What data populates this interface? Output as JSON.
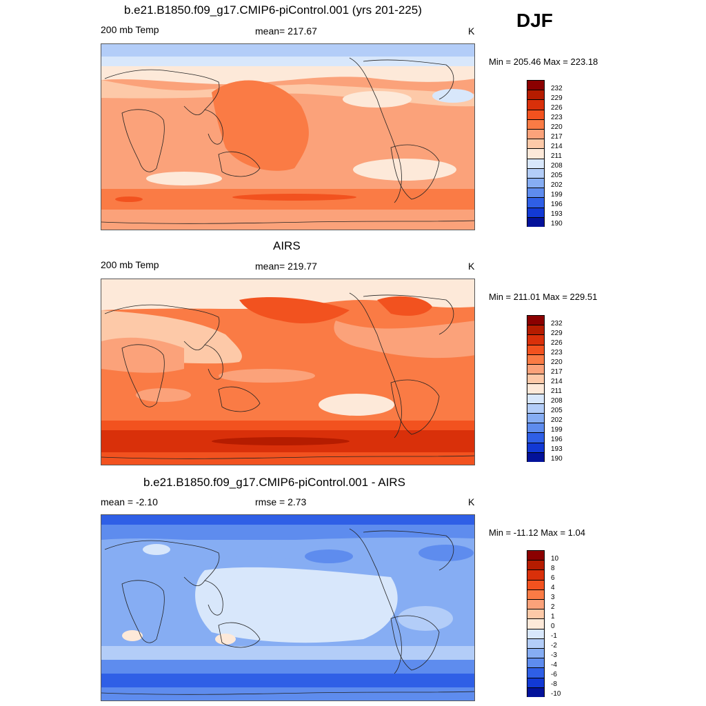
{
  "header": {
    "season": "DJF"
  },
  "panels": [
    {
      "title": "b.e21.B1850.f09_g17.CMIP6-piControl.001 (yrs 201-225)",
      "left_label": "200 mb Temp",
      "center_label": "mean= 217.67",
      "right_label": "K",
      "minmax": "Min = 205.46 Max = 223.18"
    },
    {
      "title": "AIRS",
      "left_label": "200 mb Temp",
      "center_label": "mean= 219.77",
      "right_label": "K",
      "minmax": "Min = 211.01 Max = 229.51"
    },
    {
      "title": "b.e21.B1850.f09_g17.CMIP6-piControl.001 - AIRS",
      "left_label": "mean =  -2.10",
      "center_label": "rmse =   2.73",
      "right_label": "K",
      "minmax": "Min = -11.12 Max =   1.04"
    }
  ],
  "colorbars": {
    "temp": [
      "232",
      "229",
      "226",
      "223",
      "220",
      "217",
      "214",
      "211",
      "208",
      "205",
      "202",
      "199",
      "196",
      "193",
      "190"
    ],
    "diff": [
      "10",
      "8",
      "6",
      "4",
      "3",
      "2",
      "1",
      "0",
      "-1",
      "-2",
      "-3",
      "-4",
      "-6",
      "-8",
      "-10"
    ]
  },
  "colors": {
    "levels": [
      "#8b0000",
      "#b51c00",
      "#d9300a",
      "#f2521f",
      "#fa7b45",
      "#fba27a",
      "#fdc9a8",
      "#fde9d9",
      "#d8e7fb",
      "#b3cdf8",
      "#86adf3",
      "#5e8cee",
      "#2f5fe6",
      "#1239d4",
      "#03129a"
    ]
  },
  "chart_data": [
    {
      "type": "heatmap",
      "title": "b.e21.B1850.f09_g17.CMIP6-piControl.001 (yrs 201-225)",
      "variable": "200 mb Temp",
      "units": "K",
      "mean": 217.67,
      "min": 205.46,
      "max": 223.18,
      "levels": [
        190,
        193,
        196,
        199,
        202,
        205,
        208,
        211,
        214,
        217,
        220,
        223,
        226,
        229,
        232
      ]
    },
    {
      "type": "heatmap",
      "title": "AIRS",
      "variable": "200 mb Temp",
      "units": "K",
      "mean": 219.77,
      "min": 211.01,
      "max": 229.51,
      "levels": [
        190,
        193,
        196,
        199,
        202,
        205,
        208,
        211,
        214,
        217,
        220,
        223,
        226,
        229,
        232
      ]
    },
    {
      "type": "heatmap",
      "title": "b.e21.B1850.f09_g17.CMIP6-piControl.001 - AIRS",
      "units": "K",
      "mean": -2.1,
      "rmse": 2.73,
      "min": -11.12,
      "max": 1.04,
      "levels": [
        -10,
        -8,
        -6,
        -4,
        -3,
        -2,
        -1,
        0,
        1,
        2,
        3,
        4,
        6,
        8,
        10
      ]
    }
  ]
}
